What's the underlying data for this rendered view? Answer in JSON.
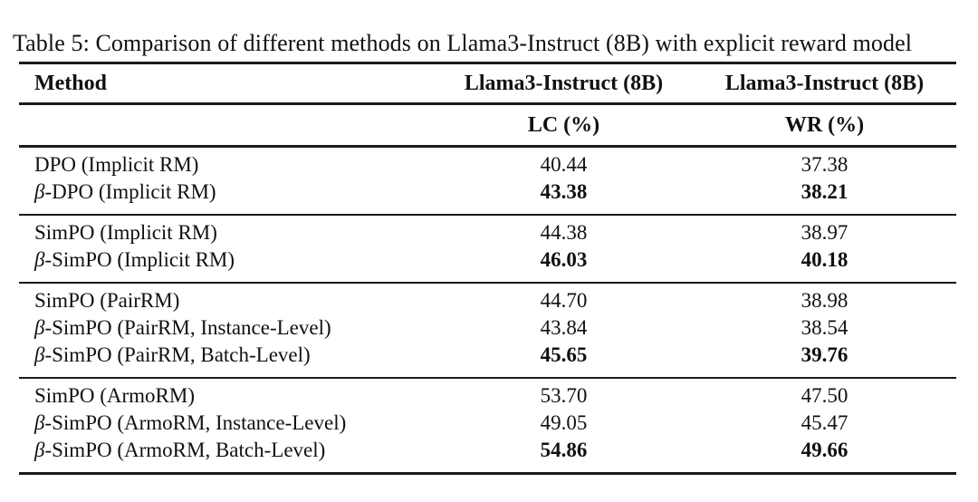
{
  "caption": "Table 5: Comparison of different methods on Llama3-Instruct (8B) with explicit reward model",
  "colors": {
    "background": "#ffffff",
    "text": "#111111",
    "rule": "#1a1a1a"
  },
  "table": {
    "header": {
      "method_label": "Method",
      "col1_title": "Llama3-Instruct (8B)",
      "col2_title": "Llama3-Instruct (8B)",
      "col1_metric": "LC (%)",
      "col2_metric": "WR (%)"
    },
    "groups": [
      {
        "rows": [
          {
            "method": "DPO (Implicit RM)",
            "lc": "40.44",
            "wr": "37.38",
            "bold_values": false
          },
          {
            "method": "β-DPO (Implicit RM)",
            "lc": "43.38",
            "wr": "38.21",
            "bold_values": true
          }
        ]
      },
      {
        "rows": [
          {
            "method": "SimPO (Implicit RM)",
            "lc": "44.38",
            "wr": "38.97",
            "bold_values": false
          },
          {
            "method": "β-SimPO (Implicit RM)",
            "lc": "46.03",
            "wr": "40.18",
            "bold_values": true
          }
        ]
      },
      {
        "rows": [
          {
            "method": "SimPO (PairRM)",
            "lc": "44.70",
            "wr": "38.98",
            "bold_values": false
          },
          {
            "method": "β-SimPO (PairRM, Instance-Level)",
            "lc": "43.84",
            "wr": "38.54",
            "bold_values": false
          },
          {
            "method": "β-SimPO (PairRM, Batch-Level)",
            "lc": "45.65",
            "wr": "39.76",
            "bold_values": true
          }
        ]
      },
      {
        "rows": [
          {
            "method": "SimPO (ArmoRM)",
            "lc": "53.70",
            "wr": "47.50",
            "bold_values": false
          },
          {
            "method": "β-SimPO (ArmoRM, Instance-Level)",
            "lc": "49.05",
            "wr": "45.47",
            "bold_values": false
          },
          {
            "method": "β-SimPO (ArmoRM, Batch-Level)",
            "lc": "54.86",
            "wr": "49.66",
            "bold_values": true
          }
        ]
      }
    ]
  }
}
